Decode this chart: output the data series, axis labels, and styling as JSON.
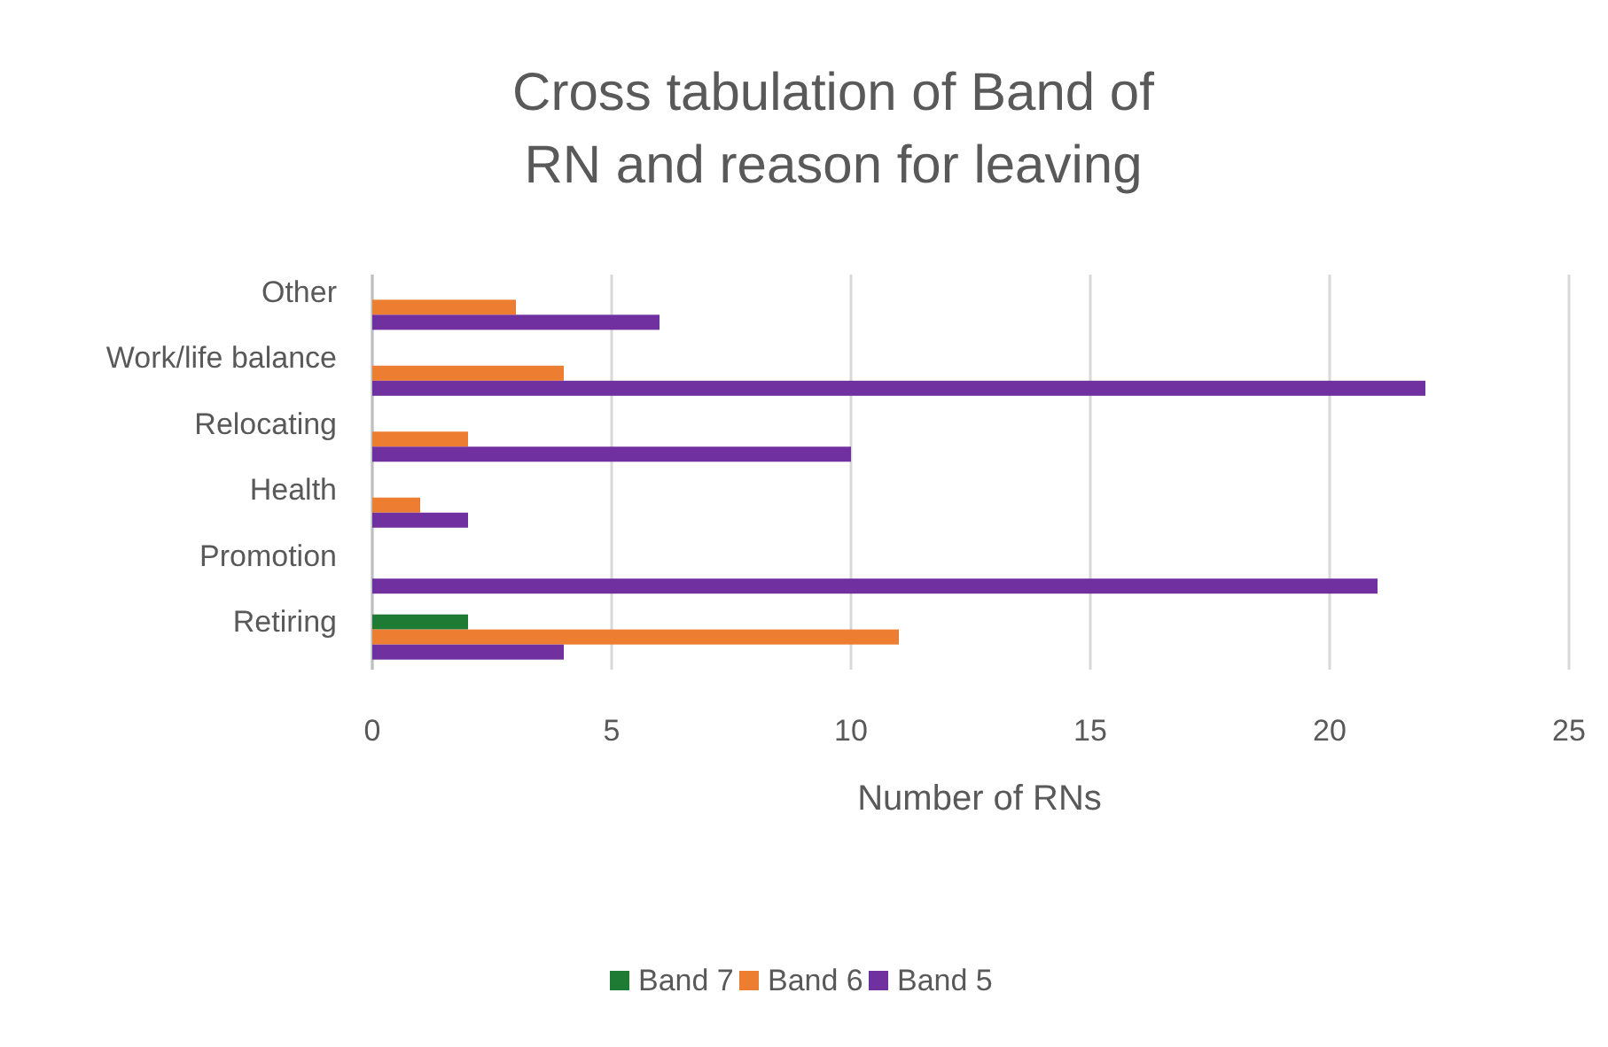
{
  "chart_data": {
    "type": "bar",
    "orientation": "horizontal",
    "title": "Cross tabulation of Band of RN and reason for leaving",
    "xlabel": "Number of RNs",
    "categories": [
      "Other",
      "Work/life balance",
      "Relocating",
      "Health",
      "Promotion",
      "Retiring"
    ],
    "series": [
      {
        "name": "Band 7",
        "color": "#1e7b34",
        "values": [
          null,
          null,
          null,
          null,
          null,
          2
        ]
      },
      {
        "name": "Band 6",
        "color": "#ed7d31",
        "values": [
          3,
          4,
          2,
          1,
          null,
          11
        ]
      },
      {
        "name": "Band 5",
        "color": "#7030a0",
        "values": [
          6,
          22,
          10,
          2,
          21,
          4
        ]
      }
    ],
    "xlim": [
      0,
      25
    ],
    "xticks": [
      0,
      5,
      10,
      15,
      20,
      25
    ],
    "grid": "x",
    "legend": "bottom"
  }
}
